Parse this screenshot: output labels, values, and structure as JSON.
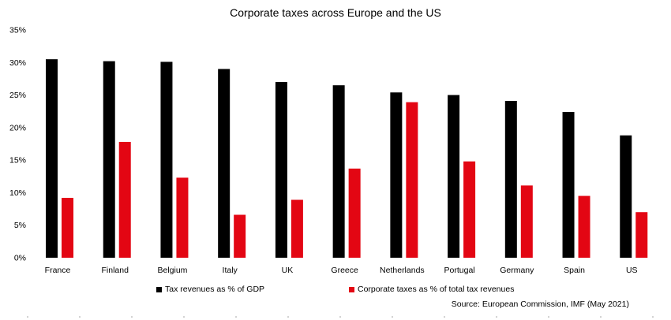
{
  "chart_data": {
    "type": "bar",
    "title": "Corporate taxes across Europe and the US",
    "categories": [
      "France",
      "Finland",
      "Belgium",
      "Italy",
      "UK",
      "Greece",
      "Netherlands",
      "Portugal",
      "Germany",
      "Spain",
      "US"
    ],
    "series": [
      {
        "name": "Tax revenues as % of GDP",
        "color": "#000000",
        "values": [
          30.5,
          30.2,
          30.1,
          29.0,
          27.0,
          26.5,
          25.4,
          25.0,
          24.1,
          22.4,
          18.8
        ]
      },
      {
        "name": "Corporate taxes as % of total tax revenues",
        "color": "#e30613",
        "values": [
          9.2,
          17.8,
          12.3,
          6.6,
          8.9,
          13.7,
          23.9,
          14.8,
          11.1,
          9.5,
          7.0
        ]
      }
    ],
    "ylim": [
      0,
      35
    ],
    "yticks": [
      "0%",
      "5%",
      "10%",
      "15%",
      "20%",
      "25%",
      "30%",
      "35%"
    ],
    "xlabel": "",
    "ylabel": "",
    "grid": false,
    "legend_position": "bottom",
    "source": "Source: European Commission, IMF (May 2021)"
  }
}
